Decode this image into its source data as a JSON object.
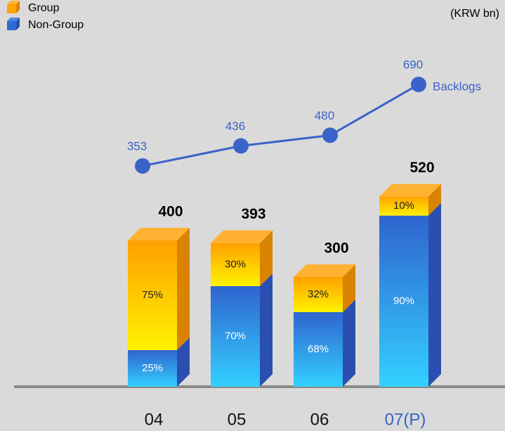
{
  "chart_data": {
    "type": "bar",
    "unit": "(KRW bn)",
    "categories": [
      "04",
      "05",
      "06",
      "07(P)"
    ],
    "totals": [
      400,
      393,
      300,
      520
    ],
    "series": [
      {
        "name": "Group",
        "color": "#ffa400",
        "values": [
          75,
          30,
          32,
          10
        ],
        "value_labels": [
          "75%",
          "30%",
          "32%",
          "10%"
        ]
      },
      {
        "name": "Non-Group",
        "color": "#2f6ad4",
        "values": [
          25,
          70,
          68,
          90
        ],
        "value_labels": [
          "25%",
          "70%",
          "68%",
          "90%"
        ]
      }
    ],
    "line": {
      "name": "Backlogs",
      "color": "#3a62c8",
      "values": [
        353,
        436,
        480,
        690
      ]
    }
  }
}
